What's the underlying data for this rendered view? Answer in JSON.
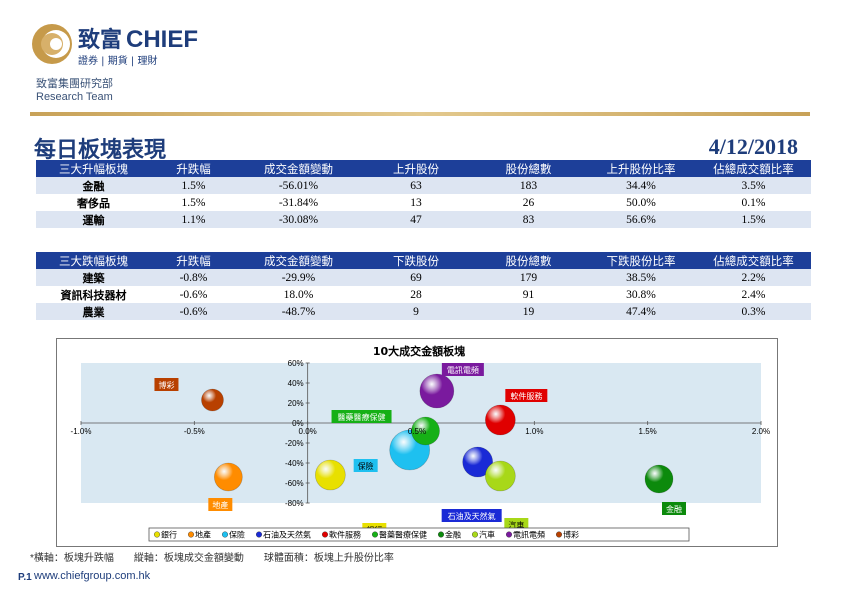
{
  "header": {
    "brand_cn": "致富",
    "brand_en": "CHIEF",
    "brand_sub": "證券 | 期貨 | 理財",
    "dept_cn": "致富集團研究部",
    "dept_en": "Research Team"
  },
  "page_title": "每日板塊表現",
  "date": "4/12/2018",
  "up_table": {
    "headers": [
      "三大升幅板塊",
      "升跌幅",
      "成交金額變動",
      "上升股份",
      "股份總數",
      "上升股份比率",
      "佔總成交額比率"
    ],
    "rows": [
      [
        "金融",
        "1.5%",
        "-56.01%",
        "63",
        "183",
        "34.4%",
        "3.5%"
      ],
      [
        "奢侈品",
        "1.5%",
        "-31.84%",
        "13",
        "26",
        "50.0%",
        "0.1%"
      ],
      [
        "運輸",
        "1.1%",
        "-30.08%",
        "47",
        "83",
        "56.6%",
        "1.5%"
      ]
    ]
  },
  "down_table": {
    "headers": [
      "三大跌幅板塊",
      "升跌幅",
      "成交金額變動",
      "下跌股份",
      "股份總數",
      "下跌股份比率",
      "佔總成交額比率"
    ],
    "rows": [
      [
        "建築",
        "-0.8%",
        "-29.9%",
        "69",
        "179",
        "38.5%",
        "2.2%"
      ],
      [
        "資訊科技器材",
        "-0.6%",
        "18.0%",
        "28",
        "91",
        "30.8%",
        "2.4%"
      ],
      [
        "農業",
        "-0.6%",
        "-48.7%",
        "9",
        "19",
        "47.4%",
        "0.3%"
      ]
    ]
  },
  "chart_data": {
    "type": "scatter",
    "title": "10大成交金額板塊",
    "xlim": [
      -1.0,
      2.0
    ],
    "ylim": [
      -80,
      60
    ],
    "x_ticks": [
      "-1.0%",
      "-0.5%",
      "0.0%",
      "0.5%",
      "1.0%",
      "1.5%",
      "2.0%"
    ],
    "y_ticks": [
      "60%",
      "40%",
      "20%",
      "0%",
      "-20%",
      "-40%",
      "-60%",
      "-80%"
    ],
    "series": [
      {
        "name": "銀行",
        "x": 0.1,
        "y": -52,
        "color": "#e8e000"
      },
      {
        "name": "地產",
        "x": -0.35,
        "y": -54,
        "color": "#ff8c00"
      },
      {
        "name": "保險",
        "x": 0.45,
        "y": -27,
        "color": "#1ec0f0"
      },
      {
        "name": "石油及天然氣",
        "x": 0.75,
        "y": -39,
        "color": "#1a2ad6"
      },
      {
        "name": "軟件服務",
        "x": 0.85,
        "y": 3,
        "color": "#e00000"
      },
      {
        "name": "醫藥醫療保健",
        "x": 0.52,
        "y": -8,
        "color": "#16b016"
      },
      {
        "name": "金融",
        "x": 1.55,
        "y": -56,
        "color": "#0c8a0c"
      },
      {
        "name": "汽車",
        "x": 0.85,
        "y": -53,
        "color": "#a8d818"
      },
      {
        "name": "電訊電頻",
        "x": 0.57,
        "y": 32,
        "color": "#7a1a9e"
      },
      {
        "name": "博彩",
        "x": -0.42,
        "y": 23,
        "color": "#b84000"
      }
    ],
    "inline_label": "0.5%",
    "legend_position": "bottom"
  },
  "footnote": "*橫軸：板塊升跌幅　　縱軸：板塊成交金額變動　　球體面積：板塊上升股份比率",
  "page_no": "P.1",
  "website": "www.chiefgroup.com.hk"
}
